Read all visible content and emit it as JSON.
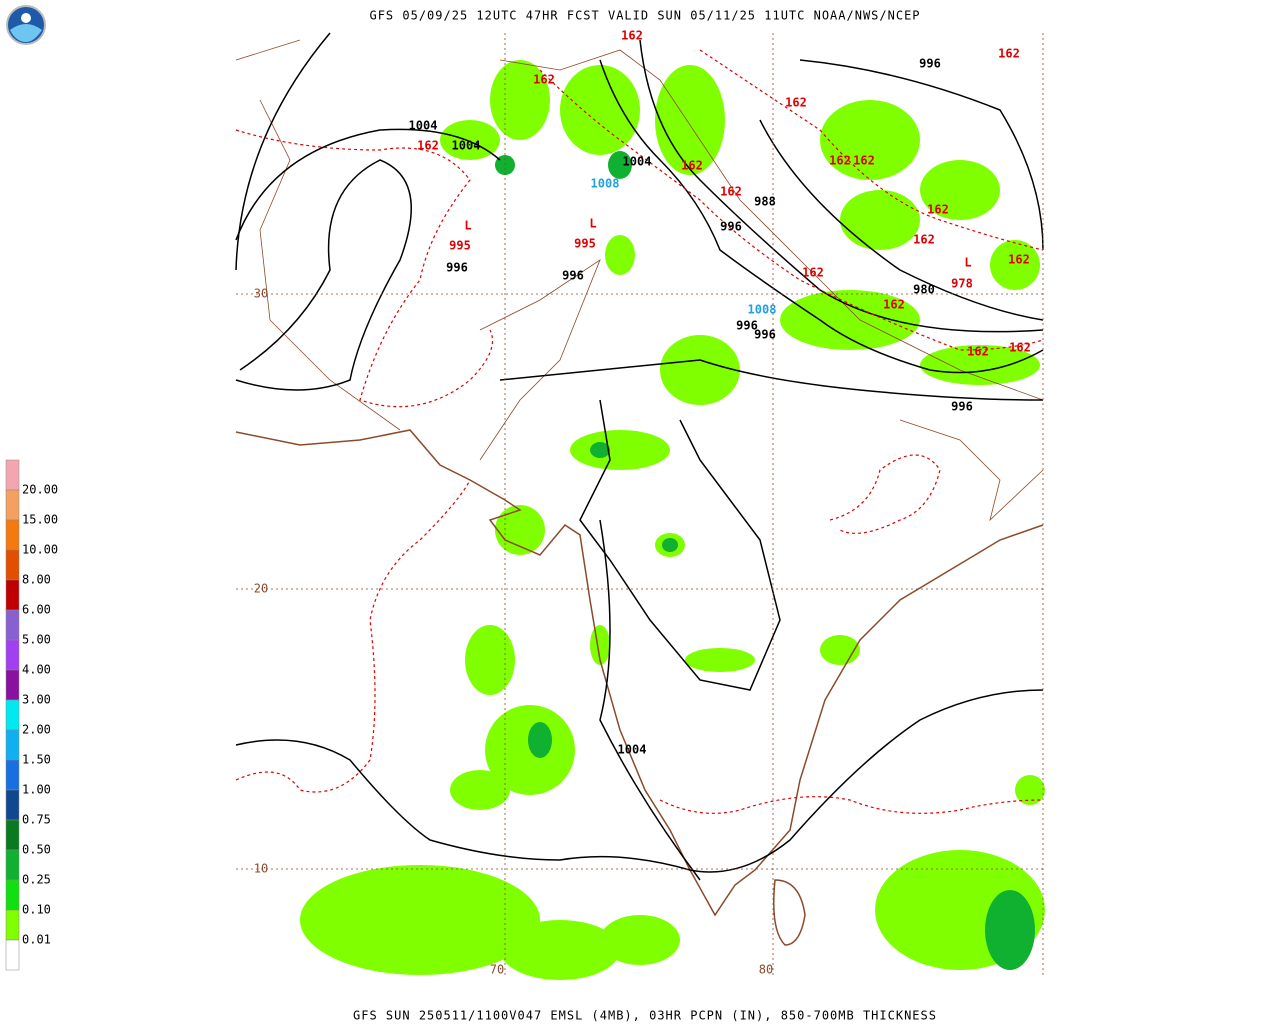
{
  "header": {
    "title": "GFS 05/09/25 12UTC 47HR FCST VALID SUN 05/11/25 11UTC NOAA/NWS/NCEP"
  },
  "footer": {
    "text": "GFS SUN 250511/1100V047 EMSL (4MB), 03HR PCPN (IN), 850-700MB THICKNESS"
  },
  "legend": {
    "labels": [
      "20.00",
      "15.00",
      "10.00",
      "8.00",
      "6.00",
      "5.00",
      "4.00",
      "3.00",
      "2.00",
      "1.50",
      "1.00",
      "0.75",
      "0.50",
      "0.25",
      "0.10",
      "0.01"
    ],
    "colors": [
      "#f4a6b0",
      "#f4a060",
      "#f47a10",
      "#e05000",
      "#c00000",
      "#8860d0",
      "#a040f0",
      "#8a10a0",
      "#00e8f0",
      "#10b0f0",
      "#1870e0",
      "#104890",
      "#0a7a20",
      "#10b030",
      "#10e010",
      "#80ff00",
      "#ffffff"
    ]
  },
  "map": {
    "lat_labels": [
      "30",
      "20",
      "10"
    ],
    "lon_labels": [
      "70",
      "80"
    ],
    "contour_labels": [
      {
        "text": "1004",
        "color": "black"
      },
      {
        "text": "1004",
        "color": "black"
      },
      {
        "text": "162",
        "color": "red"
      },
      {
        "text": "162",
        "color": "red"
      },
      {
        "text": "162",
        "color": "red"
      },
      {
        "text": "1004",
        "color": "black"
      },
      {
        "text": "1008",
        "color": "cyan"
      },
      {
        "text": "162",
        "color": "red"
      },
      {
        "text": "162",
        "color": "red"
      },
      {
        "text": "162",
        "color": "red"
      },
      {
        "text": "162",
        "color": "red"
      },
      {
        "text": "162",
        "color": "red"
      },
      {
        "text": "988",
        "color": "black"
      },
      {
        "text": "996",
        "color": "black"
      },
      {
        "text": "162",
        "color": "red"
      },
      {
        "text": "162",
        "color": "red"
      },
      {
        "text": "162",
        "color": "red"
      },
      {
        "text": "996",
        "color": "black"
      },
      {
        "text": "L",
        "color": "red"
      },
      {
        "text": "995",
        "color": "red"
      },
      {
        "text": "996",
        "color": "black"
      },
      {
        "text": "L",
        "color": "red"
      },
      {
        "text": "995",
        "color": "red"
      },
      {
        "text": "996",
        "color": "black"
      },
      {
        "text": "162",
        "color": "red"
      },
      {
        "text": "1008",
        "color": "cyan"
      },
      {
        "text": "996",
        "color": "black"
      },
      {
        "text": "996",
        "color": "black"
      },
      {
        "text": "162",
        "color": "red"
      },
      {
        "text": "980",
        "color": "black"
      },
      {
        "text": "L",
        "color": "red"
      },
      {
        "text": "978",
        "color": "red"
      },
      {
        "text": "162",
        "color": "red"
      },
      {
        "text": "162",
        "color": "red"
      },
      {
        "text": "162",
        "color": "red"
      },
      {
        "text": "996",
        "color": "black"
      },
      {
        "text": "1004",
        "color": "black"
      }
    ]
  }
}
